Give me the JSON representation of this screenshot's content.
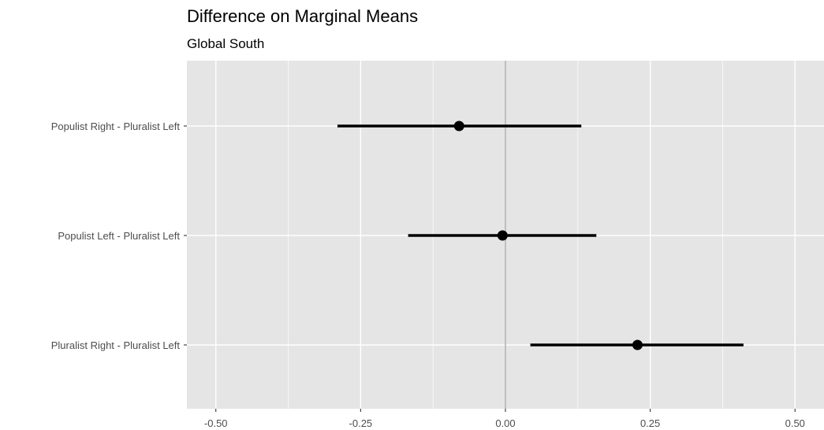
{
  "chart_data": {
    "type": "scatter",
    "title": "Difference on Marginal Means",
    "subtitle": "Global South",
    "xlabel": "",
    "ylabel": "",
    "xlim": [
      -0.55,
      0.55
    ],
    "x_ticks": [
      -0.5,
      -0.25,
      0,
      0.25,
      0.5
    ],
    "x_tick_labels": [
      "-0.50",
      "-0.25",
      "0.00",
      "0.25",
      "0.50"
    ],
    "reference_line_x": 0,
    "grid": true,
    "categories": [
      "Populist Right - Pluralist Left",
      "Populist Left - Pluralist Left",
      "Pluralist Right - Pluralist Left"
    ],
    "estimates": [
      -0.08,
      -0.005,
      0.228
    ],
    "ci_lower": [
      -0.29,
      -0.168,
      0.043
    ],
    "ci_upper": [
      0.131,
      0.157,
      0.411
    ],
    "colors": {
      "panel_background": "#e5e5e5",
      "grid": "#ffffff",
      "reference_line": "#b3b3b3",
      "marks": "#000000"
    }
  }
}
